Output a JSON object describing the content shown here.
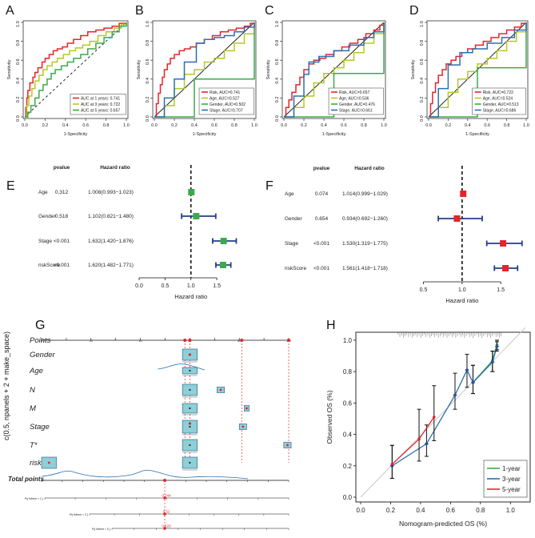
{
  "chart_data": [
    {
      "panel": "A",
      "type": "line",
      "xlabel": "1-Specificity",
      "ylabel": "Sensitivity",
      "xticks": [
        "0.0",
        "0.2",
        "0.4",
        "0.6",
        "0.8",
        "1.0"
      ],
      "yticks": [
        "0.0",
        "0.2",
        "0.4",
        "0.6",
        "0.8",
        "1.0"
      ],
      "legend": [
        "AUC at 1 years: 0.741",
        "AUC at 3 years: 0.722",
        "AUC at 5 years: 0.657"
      ],
      "series": [
        {
          "name": "1 years",
          "color": "#e4252b",
          "x": [
            0,
            0.01,
            0.02,
            0.03,
            0.05,
            0.08,
            0.1,
            0.13,
            0.17,
            0.2,
            0.24,
            0.28,
            0.32,
            0.37,
            0.42,
            0.48,
            0.55,
            0.62,
            0.7,
            0.78,
            0.86,
            0.93,
            1
          ],
          "y": [
            0,
            0.1,
            0.2,
            0.28,
            0.36,
            0.42,
            0.47,
            0.52,
            0.58,
            0.62,
            0.66,
            0.7,
            0.72,
            0.74,
            0.78,
            0.82,
            0.86,
            0.9,
            0.92,
            0.94,
            0.96,
            0.99,
            1
          ]
        },
        {
          "name": "3 years",
          "color": "#b5c823",
          "x": [
            0,
            0.02,
            0.04,
            0.07,
            0.1,
            0.14,
            0.18,
            0.22,
            0.27,
            0.32,
            0.38,
            0.44,
            0.5,
            0.57,
            0.64,
            0.72,
            0.8,
            0.88,
            0.95,
            1
          ],
          "y": [
            0,
            0.12,
            0.22,
            0.3,
            0.38,
            0.44,
            0.5,
            0.54,
            0.58,
            0.62,
            0.66,
            0.7,
            0.73,
            0.76,
            0.8,
            0.86,
            0.9,
            0.94,
            0.98,
            1
          ]
        },
        {
          "name": "5 years",
          "color": "#3aab4a",
          "x": [
            0,
            0.03,
            0.06,
            0.1,
            0.14,
            0.18,
            0.22,
            0.26,
            0.3,
            0.36,
            0.42,
            0.48,
            0.55,
            0.62,
            0.7,
            0.78,
            0.86,
            0.93,
            1
          ],
          "y": [
            0,
            0.05,
            0.12,
            0.2,
            0.28,
            0.34,
            0.4,
            0.46,
            0.5,
            0.54,
            0.58,
            0.62,
            0.66,
            0.72,
            0.78,
            0.84,
            0.9,
            0.96,
            1
          ]
        }
      ]
    },
    {
      "panel": "B",
      "type": "line",
      "xlabel": "1-Specificity",
      "ylabel": "Sensitivity",
      "xticks": [
        "0.0",
        "0.2",
        "0.4",
        "0.6",
        "0.8",
        "1.0"
      ],
      "yticks": [
        "0.0",
        "0.2",
        "0.4",
        "0.6",
        "0.8",
        "1.0"
      ],
      "legend": [
        "Risk, AUC=0.741",
        "Age, AUC=0.527",
        "Gender, AUC=0.502",
        "Stage, AUC=0.707"
      ],
      "series": [
        {
          "name": "Risk",
          "color": "#e4252b",
          "x": [
            0,
            0.02,
            0.04,
            0.06,
            0.08,
            0.1,
            0.13,
            0.16,
            0.2,
            0.25,
            0.3,
            0.36,
            0.42,
            0.5,
            0.58,
            0.66,
            0.74,
            0.82,
            0.9,
            0.96,
            1
          ],
          "y": [
            0,
            0.14,
            0.25,
            0.34,
            0.42,
            0.5,
            0.56,
            0.62,
            0.66,
            0.7,
            0.72,
            0.74,
            0.78,
            0.82,
            0.86,
            0.9,
            0.92,
            0.94,
            0.96,
            0.99,
            1
          ]
        },
        {
          "name": "Age",
          "color": "#b5c823",
          "x": [
            0,
            0.1,
            0.2,
            0.3,
            0.4,
            0.5,
            0.6,
            0.7,
            0.8,
            0.9,
            1
          ],
          "y": [
            0,
            0.12,
            0.3,
            0.45,
            0.5,
            0.58,
            0.62,
            0.7,
            0.78,
            0.88,
            1
          ]
        },
        {
          "name": "Gender",
          "color": "#3aab4a",
          "x": [
            0,
            0.4,
            1
          ],
          "y": [
            0,
            0.4,
            1
          ]
        },
        {
          "name": "Stage",
          "color": "#2c6fb0",
          "x": [
            0,
            0.1,
            0.2,
            0.3,
            0.42,
            0.5,
            0.6,
            0.7,
            0.8,
            0.9,
            1
          ],
          "y": [
            0,
            0.2,
            0.4,
            0.58,
            0.78,
            0.82,
            0.84,
            0.86,
            0.9,
            0.95,
            1
          ]
        }
      ]
    },
    {
      "panel": "C",
      "type": "line",
      "xlabel": "1-Specificity",
      "ylabel": "Sensitivity",
      "xticks": [
        "0.0",
        "0.2",
        "0.4",
        "0.6",
        "0.8",
        "1.0"
      ],
      "yticks": [
        "0.0",
        "0.2",
        "0.4",
        "0.6",
        "0.8",
        "1.0"
      ],
      "legend": [
        "Risk, AUC=0.657",
        "Age, AUC=0.536",
        "Gender, AUC=0.476",
        "Stage, AUC=0.661"
      ],
      "series": [
        {
          "name": "Risk",
          "color": "#e4252b",
          "x": [
            0,
            0.02,
            0.05,
            0.08,
            0.12,
            0.16,
            0.2,
            0.25,
            0.3,
            0.36,
            0.42,
            0.5,
            0.58,
            0.66,
            0.74,
            0.82,
            0.9,
            0.96,
            1
          ],
          "y": [
            0,
            0.1,
            0.18,
            0.26,
            0.34,
            0.42,
            0.5,
            0.56,
            0.6,
            0.62,
            0.66,
            0.7,
            0.74,
            0.78,
            0.82,
            0.88,
            0.92,
            0.97,
            1
          ]
        },
        {
          "name": "Age",
          "color": "#b5c823",
          "x": [
            0,
            0.1,
            0.2,
            0.3,
            0.4,
            0.5,
            0.6,
            0.7,
            0.8,
            0.9,
            1
          ],
          "y": [
            0,
            0.1,
            0.22,
            0.36,
            0.46,
            0.52,
            0.6,
            0.68,
            0.78,
            0.88,
            1
          ]
        },
        {
          "name": "Gender",
          "color": "#3aab4a",
          "x": [
            0,
            0.5,
            1
          ],
          "y": [
            0,
            0.46,
            1
          ]
        },
        {
          "name": "Stage",
          "color": "#2c6fb0",
          "x": [
            0,
            0.1,
            0.2,
            0.25,
            0.35,
            0.5,
            0.65,
            0.8,
            0.9,
            1
          ],
          "y": [
            0,
            0.22,
            0.45,
            0.58,
            0.64,
            0.7,
            0.76,
            0.84,
            0.9,
            1
          ]
        }
      ]
    },
    {
      "panel": "D",
      "type": "line",
      "xlabel": "1-Specificity",
      "ylabel": "Sensitivity",
      "xticks": [
        "0.0",
        "0.2",
        "0.4",
        "0.6",
        "0.8",
        "1.0"
      ],
      "yticks": [
        "0.0",
        "0.2",
        "0.4",
        "0.6",
        "0.8",
        "1.0"
      ],
      "legend": [
        "Risk, AUC=0.722",
        "Age, AUC=0.524",
        "Gender, AUC=0.513",
        "Stage, AUC=0.686"
      ],
      "series": [
        {
          "name": "Risk",
          "color": "#e4252b",
          "x": [
            0,
            0.02,
            0.04,
            0.07,
            0.1,
            0.14,
            0.18,
            0.23,
            0.28,
            0.34,
            0.4,
            0.48,
            0.56,
            0.64,
            0.72,
            0.8,
            0.88,
            0.95,
            1
          ],
          "y": [
            0,
            0.14,
            0.26,
            0.36,
            0.44,
            0.5,
            0.56,
            0.6,
            0.64,
            0.68,
            0.72,
            0.76,
            0.8,
            0.84,
            0.88,
            0.92,
            0.95,
            0.99,
            1
          ]
        },
        {
          "name": "Age",
          "color": "#b5c823",
          "x": [
            0,
            0.1,
            0.2,
            0.3,
            0.4,
            0.5,
            0.6,
            0.7,
            0.8,
            0.9,
            1
          ],
          "y": [
            0,
            0.1,
            0.26,
            0.4,
            0.48,
            0.56,
            0.62,
            0.7,
            0.8,
            0.9,
            1
          ]
        },
        {
          "name": "Gender",
          "color": "#3aab4a",
          "x": [
            0,
            0.5,
            1
          ],
          "y": [
            0,
            0.52,
            1
          ]
        },
        {
          "name": "Stage",
          "color": "#2c6fb0",
          "x": [
            0,
            0.1,
            0.2,
            0.32,
            0.45,
            0.6,
            0.75,
            0.88,
            1
          ],
          "y": [
            0,
            0.3,
            0.55,
            0.68,
            0.72,
            0.78,
            0.84,
            0.92,
            1
          ]
        }
      ]
    },
    {
      "panel": "E",
      "type": "forest",
      "header": {
        "pvalue": "pvalue",
        "hr": "Hazard ratio"
      },
      "xlabel": "Hazard ratio",
      "xticks": [
        "0.0",
        "0.5",
        "1.0",
        "1.5"
      ],
      "xlim": [
        0,
        1.9
      ],
      "marker_color": "#3aab4a",
      "rows": [
        {
          "label": "Age",
          "p": "0.312",
          "hr_text": "1.008(0.993−1.023)",
          "hr": 1.008,
          "lo": 0.993,
          "hi": 1.023
        },
        {
          "label": "Gender",
          "p": "0.518",
          "hr_text": "1.102(0.821−1.480)",
          "hr": 1.102,
          "lo": 0.821,
          "hi": 1.48
        },
        {
          "label": "Stage",
          "p": "<0.001",
          "hr_text": "1.632(1.420−1.876)",
          "hr": 1.632,
          "lo": 1.42,
          "hi": 1.876
        },
        {
          "label": "riskScore",
          "p": "<0.001",
          "hr_text": "1.620(1.482−1.771)",
          "hr": 1.62,
          "lo": 1.482,
          "hi": 1.771
        }
      ]
    },
    {
      "panel": "F",
      "type": "forest",
      "header": {
        "pvalue": "pvalue",
        "hr": "Hazard ratio"
      },
      "xlabel": "Hazard ratio",
      "xticks": [
        "0.5",
        "1.0",
        "1.5"
      ],
      "xlim": [
        0.35,
        1.85
      ],
      "marker_color": "#e4252b",
      "rows": [
        {
          "label": "Age",
          "p": "0.074",
          "hr_text": "1.014(0.999−1.029)",
          "hr": 1.014,
          "lo": 0.999,
          "hi": 1.029
        },
        {
          "label": "Gender",
          "p": "0.654",
          "hr_text": "0.934(0.692−1.260)",
          "hr": 0.934,
          "lo": 0.692,
          "hi": 1.26
        },
        {
          "label": "Stage",
          "p": "<0.001",
          "hr_text": "1.530(1.319−1.775)",
          "hr": 1.53,
          "lo": 1.319,
          "hi": 1.775
        },
        {
          "label": "riskScore",
          "p": "<0.001",
          "hr_text": "1.561(1.418−1.718)",
          "hr": 1.561,
          "lo": 1.418,
          "hi": 1.718
        }
      ]
    },
    {
      "panel": "G",
      "type": "nomogram",
      "ylabel": "c(0.5, npanels + 2 + make_space)",
      "rows": [
        "Points",
        "Gender",
        "Age",
        "N",
        "M",
        "Stage",
        "T*",
        "risk***",
        "Total points"
      ],
      "points_ticks": [
        "0",
        "20",
        "40",
        "60",
        "80",
        "100"
      ],
      "prob_rows": [
        "Pr( futime < 1 )",
        "Pr( futime < 3 )",
        "Pr( futime < 5 )"
      ],
      "prob_values": [
        "0.244",
        "0.52",
        "0.629"
      ]
    },
    {
      "panel": "H",
      "type": "calibration",
      "xlabel": "Nomogram-predicted OS (%)",
      "ylabel": "Observed OS (%)",
      "xticks": [
        "0.0",
        "0.2",
        "0.4",
        "0.6",
        "0.8",
        "1.0"
      ],
      "yticks": [
        "0.0",
        "0.2",
        "0.4",
        "0.6",
        "0.8",
        "1.0"
      ],
      "legend": [
        "1-year",
        "3-year",
        "5-year"
      ],
      "series": [
        {
          "name": "1-year",
          "color": "#3aab4a",
          "x": [
            0.75,
            0.88,
            0.91
          ],
          "y": [
            0.73,
            0.87,
            0.97
          ],
          "lo": [
            0.66,
            0.8,
            0.94
          ],
          "hi": [
            0.84,
            0.93,
            1.0
          ]
        },
        {
          "name": "3-year",
          "color": "#2c6fb0",
          "x": [
            0.21,
            0.44,
            0.63,
            0.71,
            0.75,
            0.88,
            0.91
          ],
          "y": [
            0.2,
            0.34,
            0.65,
            0.81,
            0.73,
            0.86,
            0.96
          ],
          "lo": [
            0.12,
            0.26,
            0.56,
            0.7,
            0.66,
            0.8,
            0.93
          ],
          "hi": [
            0.33,
            0.46,
            0.79,
            0.91,
            0.84,
            0.93,
            0.99
          ]
        },
        {
          "name": "5-year",
          "color": "#e4252b",
          "x": [
            0.21,
            0.39,
            0.49
          ],
          "y": [
            0.21,
            0.37,
            0.51
          ],
          "lo": [
            0.12,
            0.23,
            0.36
          ],
          "hi": [
            0.33,
            0.56,
            0.71
          ]
        }
      ]
    }
  ]
}
